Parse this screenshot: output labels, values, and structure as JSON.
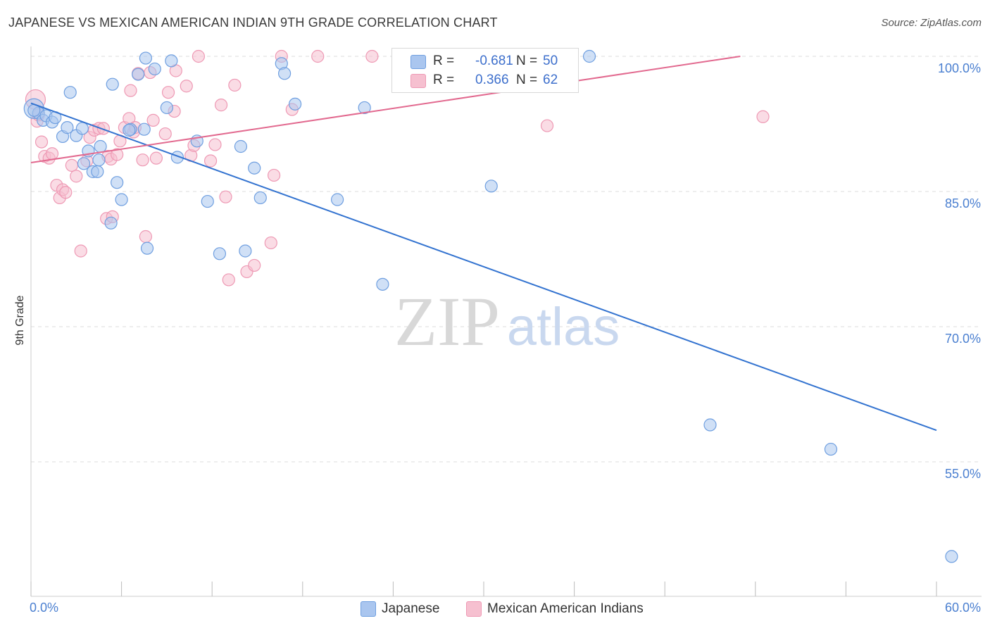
{
  "title": "JAPANESE VS MEXICAN AMERICAN INDIAN 9TH GRADE CORRELATION CHART",
  "source": "Source: ZipAtlas.com",
  "watermark": {
    "zip": "ZIP",
    "atlas": "atlas"
  },
  "colors": {
    "japanese_fill": "#aac6ef",
    "japanese_stroke": "#6f9fe0",
    "japanese_line": "#3373d0",
    "mexican_fill": "#f6c0d0",
    "mexican_stroke": "#ee99b4",
    "mexican_line": "#e2698f",
    "axis_text": "#4a7fd0",
    "grid": "#dddddd"
  },
  "legend": {
    "japanese": {
      "r_label": "R =",
      "r_value": "-0.681",
      "n_label": "N =",
      "n_value": "50"
    },
    "mexican": {
      "r_label": "R =",
      "r_value": "0.366",
      "n_label": "N =",
      "n_value": "62"
    }
  },
  "chart_data": {
    "type": "scatter",
    "title": "JAPANESE VS MEXICAN AMERICAN INDIAN 9TH GRADE CORRELATION CHART",
    "xlabel": "",
    "ylabel": "9th Grade",
    "xlim": [
      0,
      60
    ],
    "ylim": [
      40,
      102
    ],
    "x_tick_labels": [
      "0.0%",
      "60.0%"
    ],
    "y_ticks": [
      55,
      70,
      85,
      100
    ],
    "y_tick_labels": [
      "55.0%",
      "70.0%",
      "85.0%",
      "100.0%"
    ],
    "grid": true,
    "legend_position": "bottom",
    "series": [
      {
        "name": "Japanese",
        "r": -0.681,
        "n": 50,
        "trend": [
          [
            0,
            94.8
          ],
          [
            60,
            58.5
          ]
        ],
        "points": [
          [
            0.2,
            94.2
          ],
          [
            0.5,
            93.7
          ],
          [
            0.8,
            92.9
          ],
          [
            1.0,
            93.4
          ],
          [
            1.4,
            92.7
          ],
          [
            1.6,
            93.2
          ],
          [
            2.1,
            91.1
          ],
          [
            2.4,
            92.1
          ],
          [
            2.6,
            96.0
          ],
          [
            3.0,
            91.2
          ],
          [
            3.4,
            92.0
          ],
          [
            3.5,
            88.1
          ],
          [
            3.8,
            89.5
          ],
          [
            4.1,
            87.2
          ],
          [
            4.4,
            87.2
          ],
          [
            4.6,
            90.0
          ],
          [
            5.3,
            81.5
          ],
          [
            5.4,
            96.9
          ],
          [
            5.7,
            86.0
          ],
          [
            6.0,
            84.1
          ],
          [
            6.6,
            91.9
          ],
          [
            7.1,
            98.0
          ],
          [
            7.5,
            91.9
          ],
          [
            7.6,
            99.8
          ],
          [
            7.7,
            78.7
          ],
          [
            8.2,
            98.6
          ],
          [
            9.0,
            94.3
          ],
          [
            9.3,
            99.5
          ],
          [
            9.7,
            88.8
          ],
          [
            11.0,
            90.6
          ],
          [
            11.7,
            83.9
          ],
          [
            12.5,
            78.1
          ],
          [
            13.9,
            90.0
          ],
          [
            14.2,
            78.4
          ],
          [
            14.8,
            87.6
          ],
          [
            15.2,
            84.3
          ],
          [
            16.6,
            99.2
          ],
          [
            16.8,
            98.1
          ],
          [
            17.5,
            94.7
          ],
          [
            20.3,
            84.1
          ],
          [
            22.1,
            94.3
          ],
          [
            23.3,
            74.7
          ],
          [
            30.5,
            85.6
          ],
          [
            37.0,
            100.0
          ],
          [
            45.0,
            59.1
          ],
          [
            53.0,
            56.4
          ],
          [
            61.0,
            44.5
          ],
          [
            0.2,
            94.0
          ],
          [
            6.5,
            91.8
          ],
          [
            4.5,
            88.5
          ]
        ]
      },
      {
        "name": "Mexican American Indians",
        "r": 0.366,
        "n": 62,
        "trend": [
          [
            0,
            88.2
          ],
          [
            47,
            100.0
          ]
        ],
        "points": [
          [
            0.3,
            95.2
          ],
          [
            0.4,
            92.8
          ],
          [
            0.7,
            90.5
          ],
          [
            0.9,
            88.9
          ],
          [
            1.2,
            88.7
          ],
          [
            1.4,
            89.2
          ],
          [
            1.7,
            85.7
          ],
          [
            1.9,
            84.3
          ],
          [
            2.1,
            85.2
          ],
          [
            2.3,
            84.9
          ],
          [
            2.7,
            87.9
          ],
          [
            3.0,
            86.7
          ],
          [
            3.3,
            78.4
          ],
          [
            3.7,
            88.4
          ],
          [
            3.9,
            91.0
          ],
          [
            4.2,
            91.8
          ],
          [
            4.5,
            92.0
          ],
          [
            4.8,
            92.0
          ],
          [
            5.0,
            82.0
          ],
          [
            5.1,
            88.9
          ],
          [
            5.3,
            88.6
          ],
          [
            5.4,
            82.2
          ],
          [
            5.7,
            89.1
          ],
          [
            5.9,
            90.6
          ],
          [
            6.2,
            92.1
          ],
          [
            6.5,
            93.1
          ],
          [
            6.6,
            96.2
          ],
          [
            6.8,
            91.6
          ],
          [
            6.9,
            92.1
          ],
          [
            7.1,
            98.1
          ],
          [
            7.4,
            88.5
          ],
          [
            7.6,
            80.0
          ],
          [
            7.9,
            98.2
          ],
          [
            8.1,
            92.9
          ],
          [
            8.3,
            88.7
          ],
          [
            8.9,
            91.4
          ],
          [
            9.1,
            96.0
          ],
          [
            9.5,
            93.9
          ],
          [
            9.6,
            98.4
          ],
          [
            10.3,
            96.7
          ],
          [
            10.6,
            89.0
          ],
          [
            10.8,
            90.1
          ],
          [
            11.1,
            100.0
          ],
          [
            11.9,
            88.4
          ],
          [
            12.2,
            90.2
          ],
          [
            12.6,
            94.6
          ],
          [
            12.9,
            84.4
          ],
          [
            13.1,
            75.2
          ],
          [
            13.5,
            96.8
          ],
          [
            14.3,
            76.1
          ],
          [
            14.8,
            76.8
          ],
          [
            15.9,
            79.3
          ],
          [
            16.1,
            86.8
          ],
          [
            16.6,
            100.0
          ],
          [
            17.3,
            94.1
          ],
          [
            19.0,
            100.0
          ],
          [
            22.6,
            100.0
          ],
          [
            26.6,
            100.0
          ],
          [
            30.9,
            100.0
          ],
          [
            34.2,
            92.3
          ],
          [
            48.5,
            93.3
          ],
          [
            0.5,
            93.5
          ]
        ]
      }
    ]
  },
  "bottom_legend": [
    {
      "label": "Japanese"
    },
    {
      "label": "Mexican American Indians"
    }
  ]
}
